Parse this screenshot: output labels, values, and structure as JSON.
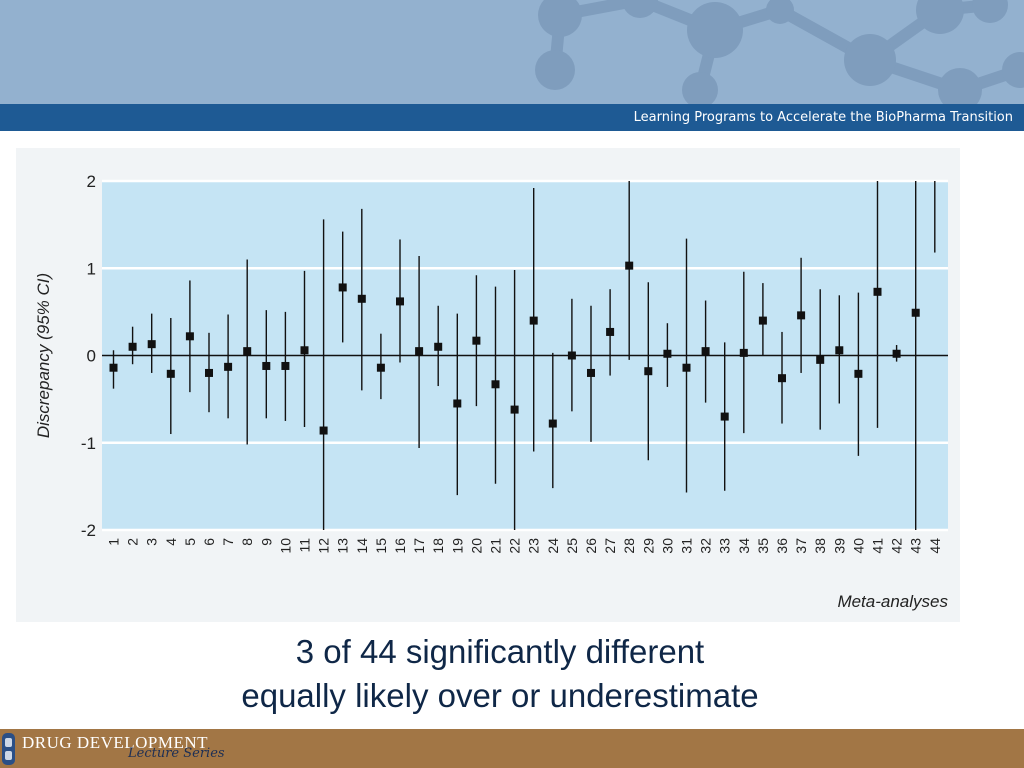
{
  "header": {
    "tagline": "Learning Programs to Accelerate the BioPharma Transition"
  },
  "caption": {
    "line1": "3 of 44 significantly different",
    "line2": "equally likely over or underestimate"
  },
  "footer": {
    "brand_name": "DRUG DEVELOPMENT",
    "brand_sub": "Lecture Series"
  },
  "colors": {
    "banner_bg": "#93b1cf",
    "tag_bar": "#1e5a94",
    "plot_bg": "#c5e4f4",
    "footer_bg": "#a27645",
    "caption_text": "#0f2747"
  },
  "chart_data": {
    "type": "scatter",
    "subtype": "forest plot with 95% CI error bars",
    "title": "",
    "xlabel": "Meta-analyses",
    "ylabel": "Discrepancy (95% CI)",
    "ylim": [
      -2,
      2
    ],
    "yticks": [
      2,
      1,
      0,
      -1,
      -2
    ],
    "grid": true,
    "reference_line": 0,
    "categories": [
      "1",
      "2",
      "3",
      "4",
      "5",
      "6",
      "7",
      "8",
      "9",
      "10",
      "11",
      "12",
      "13",
      "14",
      "15",
      "16",
      "17",
      "18",
      "19",
      "20",
      "21",
      "22",
      "23",
      "24",
      "25",
      "26",
      "27",
      "28",
      "29",
      "30",
      "31",
      "32",
      "33",
      "34",
      "35",
      "36",
      "37",
      "38",
      "39",
      "40",
      "41",
      "42",
      "43",
      "44"
    ],
    "series": [
      {
        "estimate": [
          -0.14,
          0.1,
          0.13,
          -0.21,
          0.22,
          -0.2,
          -0.13,
          0.05,
          -0.12,
          -0.12,
          0.06,
          -0.86,
          0.78,
          0.65,
          -0.14,
          0.62,
          0.05,
          0.1,
          -0.55,
          0.17,
          -0.33,
          -0.62,
          0.4,
          -0.78,
          0.0,
          -0.2,
          0.27,
          1.03,
          -0.18,
          0.02,
          -0.14,
          0.05,
          -0.7,
          0.03,
          0.4,
          -0.26,
          0.46,
          -0.05,
          0.06,
          -0.21,
          0.73,
          0.02,
          0.49,
          null
        ],
        "lower": [
          -0.38,
          -0.1,
          -0.2,
          -0.9,
          -0.42,
          -0.65,
          -0.72,
          -1.02,
          -0.72,
          -0.75,
          -0.82,
          -2.0,
          0.15,
          -0.4,
          -0.5,
          -0.08,
          -1.06,
          -0.35,
          -1.6,
          -0.58,
          -1.47,
          -2.0,
          -1.1,
          -1.52,
          -0.64,
          -0.99,
          -0.23,
          -0.05,
          -1.2,
          -0.36,
          -1.57,
          -0.54,
          -1.55,
          -0.89,
          0.0,
          -0.78,
          -0.2,
          -0.85,
          -0.55,
          -1.15,
          -0.83,
          -0.07,
          -2.0,
          1.18
        ],
        "upper": [
          0.06,
          0.33,
          0.48,
          0.43,
          0.86,
          0.26,
          0.47,
          1.1,
          0.52,
          0.5,
          0.97,
          1.56,
          1.42,
          1.68,
          0.25,
          1.33,
          1.14,
          0.57,
          0.48,
          0.92,
          0.79,
          0.98,
          1.92,
          0.03,
          0.65,
          0.57,
          0.76,
          2.0,
          0.84,
          0.37,
          1.34,
          0.63,
          0.15,
          0.96,
          0.83,
          0.27,
          1.12,
          0.76,
          0.69,
          0.72,
          2.0,
          0.12,
          2.0,
          2.0
        ]
      }
    ]
  }
}
